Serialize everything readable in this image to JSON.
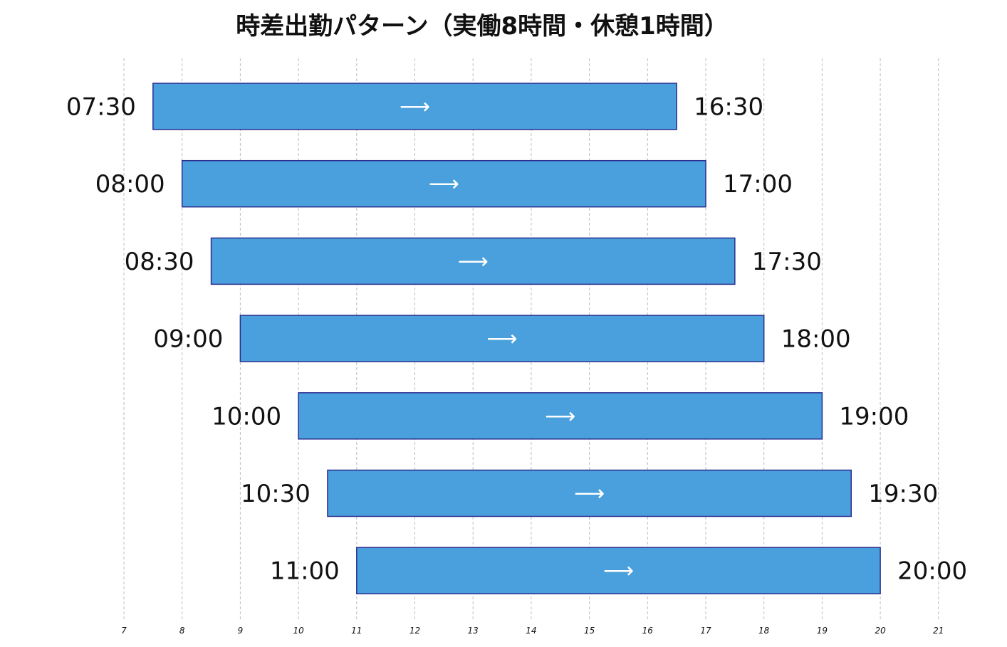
{
  "chart_data": {
    "type": "bar",
    "orientation": "horizontal-range",
    "title": "時差出勤パターン（実働8時間・休憩1時間）",
    "xlabel": "",
    "ylabel": "",
    "xlim": [
      6.5,
      21.5
    ],
    "x_ticks": [
      7,
      8,
      9,
      10,
      11,
      12,
      13,
      14,
      15,
      16,
      17,
      18,
      19,
      20,
      21
    ],
    "grid": true,
    "bar_color": "#4aa0dc",
    "bar_edge_color": "#2a2f8f",
    "arrow_symbol": "⟶",
    "series": [
      {
        "start": 7.5,
        "end": 16.5,
        "start_label": "07:30",
        "end_label": "16:30"
      },
      {
        "start": 8.0,
        "end": 17.0,
        "start_label": "08:00",
        "end_label": "17:00"
      },
      {
        "start": 8.5,
        "end": 17.5,
        "start_label": "08:30",
        "end_label": "17:30"
      },
      {
        "start": 9.0,
        "end": 18.0,
        "start_label": "09:00",
        "end_label": "18:00"
      },
      {
        "start": 10.0,
        "end": 19.0,
        "start_label": "10:00",
        "end_label": "19:00"
      },
      {
        "start": 10.5,
        "end": 19.5,
        "start_label": "10:30",
        "end_label": "19:30"
      },
      {
        "start": 11.0,
        "end": 20.0,
        "start_label": "11:00",
        "end_label": "20:00"
      }
    ]
  }
}
